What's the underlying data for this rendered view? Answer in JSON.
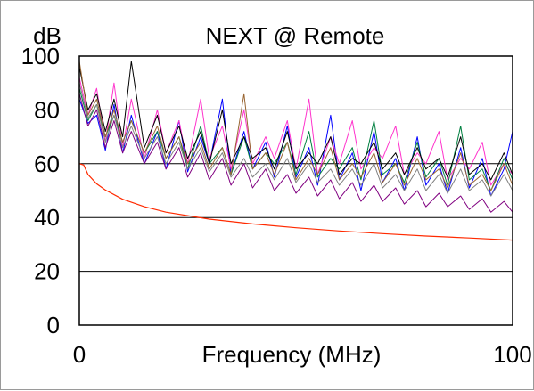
{
  "chart_data": {
    "type": "line",
    "title": "NEXT @ Remote",
    "ylabel": "dB",
    "xlabel": "Frequency (MHz)",
    "xlim": [
      0,
      100
    ],
    "ylim": [
      0,
      100
    ],
    "x_ticks": [
      "0",
      "100"
    ],
    "y_ticks": [
      "100",
      "80",
      "60",
      "40",
      "20",
      "0"
    ],
    "y_tick_values": [
      100,
      80,
      60,
      40,
      20,
      0
    ],
    "gridlines_y": [
      20,
      40,
      60,
      80
    ],
    "grid": true,
    "colors": {
      "limit": "#ff2a00",
      "pairs": [
        "#0000ff",
        "#ff33cc",
        "#008040",
        "#800080",
        "#000000",
        "#996633",
        "#808080"
      ],
      "axis": "#000000",
      "grid": "#000000"
    },
    "limit_line": {
      "x": [
        0,
        1,
        2,
        4,
        6,
        10,
        15,
        20,
        30,
        40,
        50,
        60,
        70,
        80,
        90,
        100
      ],
      "y": [
        60,
        59.5,
        56,
        52.5,
        50.2,
        46.8,
        44,
        42,
        39.4,
        37.6,
        36.2,
        35.0,
        34.0,
        33.1,
        32.4,
        31.6
      ]
    },
    "series": [
      {
        "color": "#0000ff",
        "x": [
          0,
          2,
          4,
          6,
          8,
          10,
          12,
          15,
          18,
          20,
          23,
          25,
          28,
          30,
          33,
          35,
          38,
          40,
          43,
          45,
          48,
          50,
          53,
          55,
          58,
          60,
          63,
          65,
          68,
          70,
          73,
          75,
          78,
          80,
          83,
          85,
          88,
          90,
          93,
          95,
          98,
          100
        ],
        "y": [
          84,
          75,
          78,
          65,
          82,
          64,
          78,
          60,
          72,
          58,
          76,
          57,
          70,
          60,
          84,
          56,
          72,
          58,
          68,
          55,
          74,
          55,
          66,
          52,
          78,
          54,
          64,
          50,
          72,
          53,
          62,
          50,
          70,
          52,
          60,
          49,
          66,
          51,
          62,
          48,
          58,
          72
        ]
      },
      {
        "color": "#ff33cc",
        "x": [
          0,
          2,
          4,
          6,
          8,
          10,
          12,
          15,
          18,
          20,
          23,
          25,
          28,
          30,
          33,
          35,
          38,
          40,
          43,
          45,
          48,
          50,
          53,
          55,
          58,
          60,
          63,
          65,
          68,
          70,
          73,
          75,
          78,
          80,
          83,
          85,
          88,
          90,
          93,
          95,
          98,
          100
        ],
        "y": [
          92,
          78,
          88,
          68,
          90,
          66,
          84,
          62,
          80,
          64,
          76,
          60,
          84,
          62,
          74,
          58,
          80,
          60,
          70,
          62,
          76,
          58,
          84,
          56,
          70,
          60,
          76,
          58,
          66,
          62,
          74,
          56,
          64,
          60,
          72,
          54,
          62,
          58,
          68,
          52,
          60,
          56
        ]
      },
      {
        "color": "#008040",
        "x": [
          0,
          2,
          4,
          6,
          8,
          10,
          12,
          15,
          18,
          20,
          23,
          25,
          28,
          30,
          33,
          35,
          38,
          40,
          43,
          45,
          48,
          50,
          53,
          55,
          58,
          60,
          63,
          65,
          68,
          70,
          73,
          75,
          78,
          80,
          83,
          85,
          88,
          90,
          93,
          95,
          98,
          100
        ],
        "y": [
          88,
          76,
          82,
          70,
          78,
          68,
          76,
          64,
          72,
          62,
          70,
          58,
          74,
          60,
          66,
          56,
          70,
          58,
          64,
          60,
          68,
          56,
          72,
          55,
          62,
          58,
          66,
          54,
          76,
          56,
          60,
          53,
          68,
          55,
          62,
          52,
          74,
          54,
          58,
          50,
          62,
          54
        ]
      },
      {
        "color": "#800080",
        "x": [
          0,
          2,
          4,
          6,
          8,
          10,
          12,
          15,
          18,
          20,
          23,
          25,
          28,
          30,
          33,
          35,
          38,
          40,
          43,
          45,
          48,
          50,
          53,
          55,
          58,
          60,
          63,
          65,
          68,
          70,
          73,
          75,
          78,
          80,
          83,
          85,
          88,
          90,
          93,
          95,
          98,
          100
        ],
        "y": [
          86,
          74,
          80,
          66,
          76,
          64,
          72,
          60,
          68,
          58,
          66,
          55,
          64,
          54,
          62,
          52,
          60,
          51,
          58,
          50,
          56,
          49,
          55,
          48,
          54,
          47,
          53,
          46,
          52,
          46,
          51,
          45,
          50,
          44,
          49,
          44,
          48,
          43,
          47,
          42,
          46,
          42
        ]
      },
      {
        "color": "#000000",
        "x": [
          0,
          2,
          4,
          6,
          8,
          10,
          12,
          15,
          18,
          20,
          23,
          25,
          28,
          30,
          33,
          35,
          38,
          40,
          43,
          45,
          48,
          50,
          53,
          55,
          58,
          60,
          63,
          65,
          68,
          70,
          73,
          75,
          78,
          80,
          83,
          85,
          88,
          90,
          93,
          95,
          98,
          100
        ],
        "y": [
          96,
          80,
          86,
          72,
          84,
          70,
          98,
          66,
          78,
          64,
          74,
          62,
          72,
          60,
          80,
          60,
          70,
          62,
          66,
          58,
          72,
          58,
          64,
          60,
          70,
          56,
          62,
          60,
          68,
          58,
          64,
          56,
          66,
          58,
          62,
          55,
          70,
          56,
          60,
          54,
          64,
          56
        ]
      },
      {
        "color": "#996633",
        "x": [
          0,
          2,
          4,
          6,
          8,
          10,
          12,
          15,
          18,
          20,
          23,
          25,
          28,
          30,
          33,
          35,
          38,
          40,
          43,
          45,
          48,
          50,
          53,
          55,
          58,
          60,
          63,
          65,
          68,
          70,
          73,
          75,
          78,
          80,
          83,
          85,
          88,
          90,
          93,
          95,
          98,
          100
        ],
        "y": [
          98,
          78,
          84,
          70,
          80,
          68,
          76,
          64,
          74,
          62,
          70,
          60,
          68,
          58,
          66,
          56,
          86,
          58,
          64,
          56,
          68,
          54,
          62,
          56,
          66,
          54,
          60,
          55,
          64,
          53,
          60,
          52,
          62,
          54,
          58,
          51,
          64,
          52,
          56,
          50,
          60,
          52
        ]
      },
      {
        "color": "#808080",
        "x": [
          0,
          2,
          4,
          6,
          8,
          10,
          12,
          15,
          18,
          20,
          23,
          25,
          28,
          30,
          33,
          35,
          38,
          40,
          43,
          45,
          48,
          50,
          53,
          55,
          58,
          60,
          63,
          65,
          68,
          70,
          73,
          75,
          78,
          80,
          83,
          85,
          88,
          90,
          93,
          95,
          98,
          100
        ],
        "y": [
          90,
          77,
          82,
          68,
          78,
          66,
          74,
          62,
          70,
          60,
          68,
          58,
          66,
          57,
          64,
          55,
          62,
          55,
          60,
          54,
          62,
          53,
          60,
          53,
          58,
          52,
          58,
          52,
          60,
          51,
          56,
          50,
          58,
          50,
          56,
          49,
          58,
          50,
          54,
          48,
          56,
          50
        ]
      }
    ]
  }
}
